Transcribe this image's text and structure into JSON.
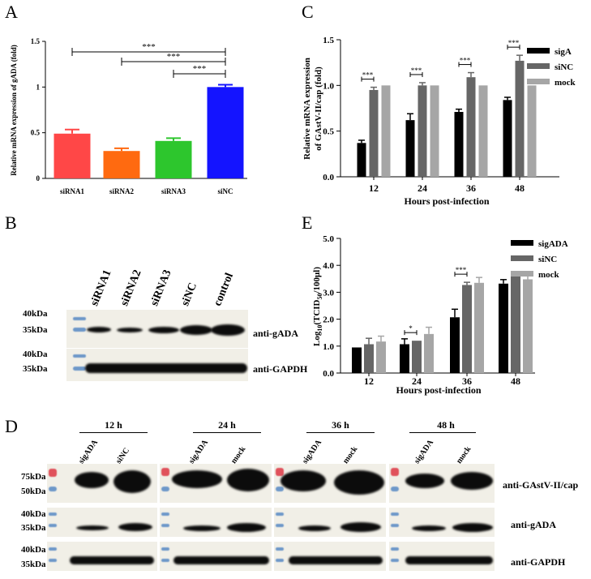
{
  "panels": {
    "A": "A",
    "B": "B",
    "C": "C",
    "D": "D",
    "E": "E"
  },
  "chart_data": [
    {
      "id": "A",
      "type": "bar",
      "title": "",
      "ylabel": "Relative mRNA expression of gADA (fold)",
      "xlabel": "",
      "categories": [
        "siRNA1",
        "siRNA2",
        "siRNA3",
        "siNC"
      ],
      "values": [
        0.49,
        0.3,
        0.41,
        1.0
      ],
      "errors": [
        0.045,
        0.03,
        0.03,
        0.025
      ],
      "colors": [
        "#ff4747",
        "#ff6a10",
        "#2dc62d",
        "#1414ff"
      ],
      "ylim": [
        0,
        1.25
      ],
      "yticks": [
        "0",
        "0.5",
        "1",
        "1.5"
      ],
      "yticks_values": [
        0,
        0.5,
        1,
        1.5
      ],
      "annotations": [
        "***",
        "***",
        "***"
      ]
    },
    {
      "id": "C",
      "type": "bar",
      "ylabel": "Relative mRNA expression of GAstV-II/cap (fold)",
      "xlabel": "Hours post-infection",
      "categories": [
        "12",
        "24",
        "36",
        "48"
      ],
      "series": [
        {
          "name": "sigA",
          "color": "#000000",
          "values": [
            0.37,
            0.62,
            0.71,
            0.84
          ],
          "errors": [
            0.03,
            0.07,
            0.03,
            0.03
          ]
        },
        {
          "name": "siNC",
          "color": "#666666",
          "values": [
            0.95,
            1.0,
            1.09,
            1.27
          ],
          "errors": [
            0.03,
            0.03,
            0.05,
            0.06
          ]
        },
        {
          "name": "mock",
          "color": "#a6a6a6",
          "values": [
            1.0,
            1.0,
            1.0,
            1.0
          ],
          "errors": [
            0,
            0,
            0,
            0
          ]
        }
      ],
      "ylim": [
        0,
        1.5
      ],
      "yticks": [
        "0.0",
        "0.5",
        "1.0",
        "1.5"
      ],
      "annotations": [
        "***",
        "***",
        "***",
        "***"
      ]
    },
    {
      "id": "E",
      "type": "bar",
      "ylabel": "Log10(TCID50/100μl)",
      "ylabel_base": "Log",
      "ylabel_sub1": "10",
      "ylabel_mid": "(TCID",
      "ylabel_sub2": "50",
      "ylabel_end": "/100μl)",
      "xlabel": "Hours post-infection",
      "categories": [
        "12",
        "24",
        "36",
        "48"
      ],
      "series": [
        {
          "name": "sigADA",
          "color": "#000000",
          "values": [
            0.95,
            1.07,
            2.07,
            3.32
          ],
          "errors": [
            0,
            0.2,
            0.3,
            0.15
          ]
        },
        {
          "name": "siNC",
          "color": "#666666",
          "values": [
            1.07,
            1.2,
            3.27,
            3.62
          ],
          "errors": [
            0.22,
            0,
            0.1,
            0.12
          ]
        },
        {
          "name": "mock",
          "color": "#a6a6a6",
          "values": [
            1.17,
            1.45,
            3.35,
            3.48
          ],
          "errors": [
            0.2,
            0.25,
            0.2,
            0.15
          ]
        }
      ],
      "ylim": [
        0,
        5
      ],
      "yticks": [
        "0.0",
        "1.0",
        "2.0",
        "3.0",
        "4.0",
        "5.0"
      ],
      "annotations": [
        "*",
        "***"
      ]
    }
  ],
  "blotB": {
    "lanes": [
      "siRNA1",
      "siRNA2",
      "siRNA3",
      "siNC",
      "control"
    ],
    "markers_top": [
      "40kDa",
      "35kDa"
    ],
    "markers_bottom": [
      "40kDa",
      "35kDa"
    ],
    "antibodies": [
      "anti-gADA",
      "anti-GAPDH"
    ]
  },
  "blotD": {
    "timepoints": [
      "12 h",
      "24 h",
      "36 h",
      "48 h"
    ],
    "lanes": [
      [
        "sigADA",
        "siNC"
      ],
      [
        "sigADA",
        "mock"
      ],
      [
        "sigADA",
        "mock"
      ],
      [
        "sigADA",
        "mock"
      ]
    ],
    "markers_row1": [
      "75kDa",
      "50kDa"
    ],
    "markers_row2": [
      "40kDa",
      "35kDa"
    ],
    "markers_row3": [
      "40kDa",
      "35kDa"
    ],
    "antibodies": [
      "anti-GAstV-II/cap",
      "anti-gADA",
      "anti-GAPDH"
    ]
  }
}
